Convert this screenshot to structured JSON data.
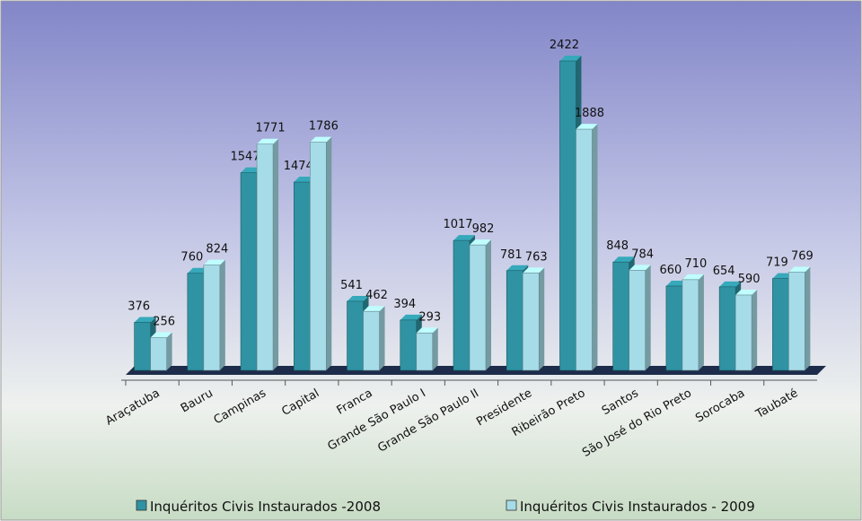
{
  "chart_data": {
    "type": "bar",
    "categories": [
      "Araçatuba",
      "Bauru",
      "Campinas",
      "Capital",
      "Franca",
      "Grande São Paulo I",
      "Grande São Paulo II",
      "Presidente",
      "Ribeirão Preto",
      "Santos",
      "São José do Rio Preto",
      "Sorocaba",
      "Taubaté"
    ],
    "series": [
      {
        "name": "Inquéritos Civis Instaurados -2008",
        "color": "#2f93a3",
        "values": [
          376,
          760,
          1547,
          1474,
          541,
          394,
          1017,
          781,
          2422,
          848,
          660,
          654,
          719
        ]
      },
      {
        "name": "Inquéritos Civis Instaurados - 2009",
        "color": "#a6dce8",
        "values": [
          256,
          824,
          1771,
          1786,
          462,
          293,
          982,
          763,
          1888,
          784,
          710,
          590,
          769
        ]
      }
    ]
  }
}
